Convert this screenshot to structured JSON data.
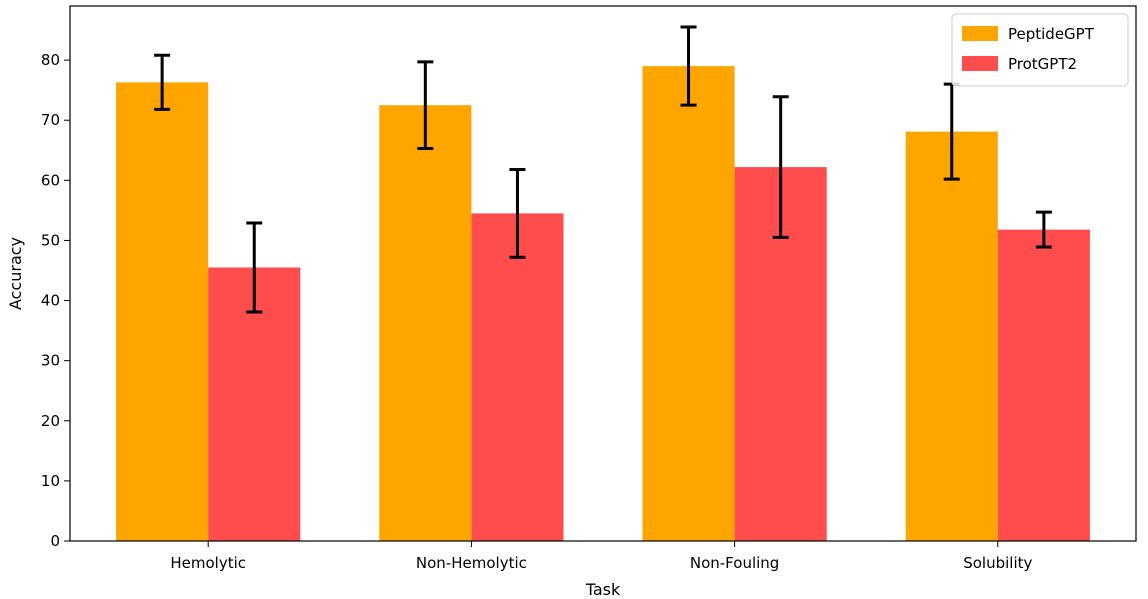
{
  "chart_data": {
    "type": "bar",
    "categories": [
      "Hemolytic",
      "Non-Hemolytic",
      "Non-Fouling",
      "Solubility"
    ],
    "series": [
      {
        "name": "PeptideGPT",
        "color": "#ffa500",
        "values": [
          76.3,
          72.5,
          79.0,
          68.1
        ],
        "errors": [
          4.5,
          7.2,
          6.5,
          7.9
        ]
      },
      {
        "name": "ProtGPT2",
        "color": "#ff4d4d",
        "values": [
          45.5,
          54.5,
          62.2,
          51.8
        ],
        "errors": [
          7.4,
          7.3,
          11.7,
          2.9
        ]
      }
    ],
    "xlabel": "Task",
    "ylabel": "Accuracy",
    "ylim": [
      0,
      89
    ],
    "yticks": [
      0,
      10,
      20,
      30,
      40,
      50,
      60,
      70,
      80
    ],
    "grid": false,
    "legend_position": "top-right"
  }
}
